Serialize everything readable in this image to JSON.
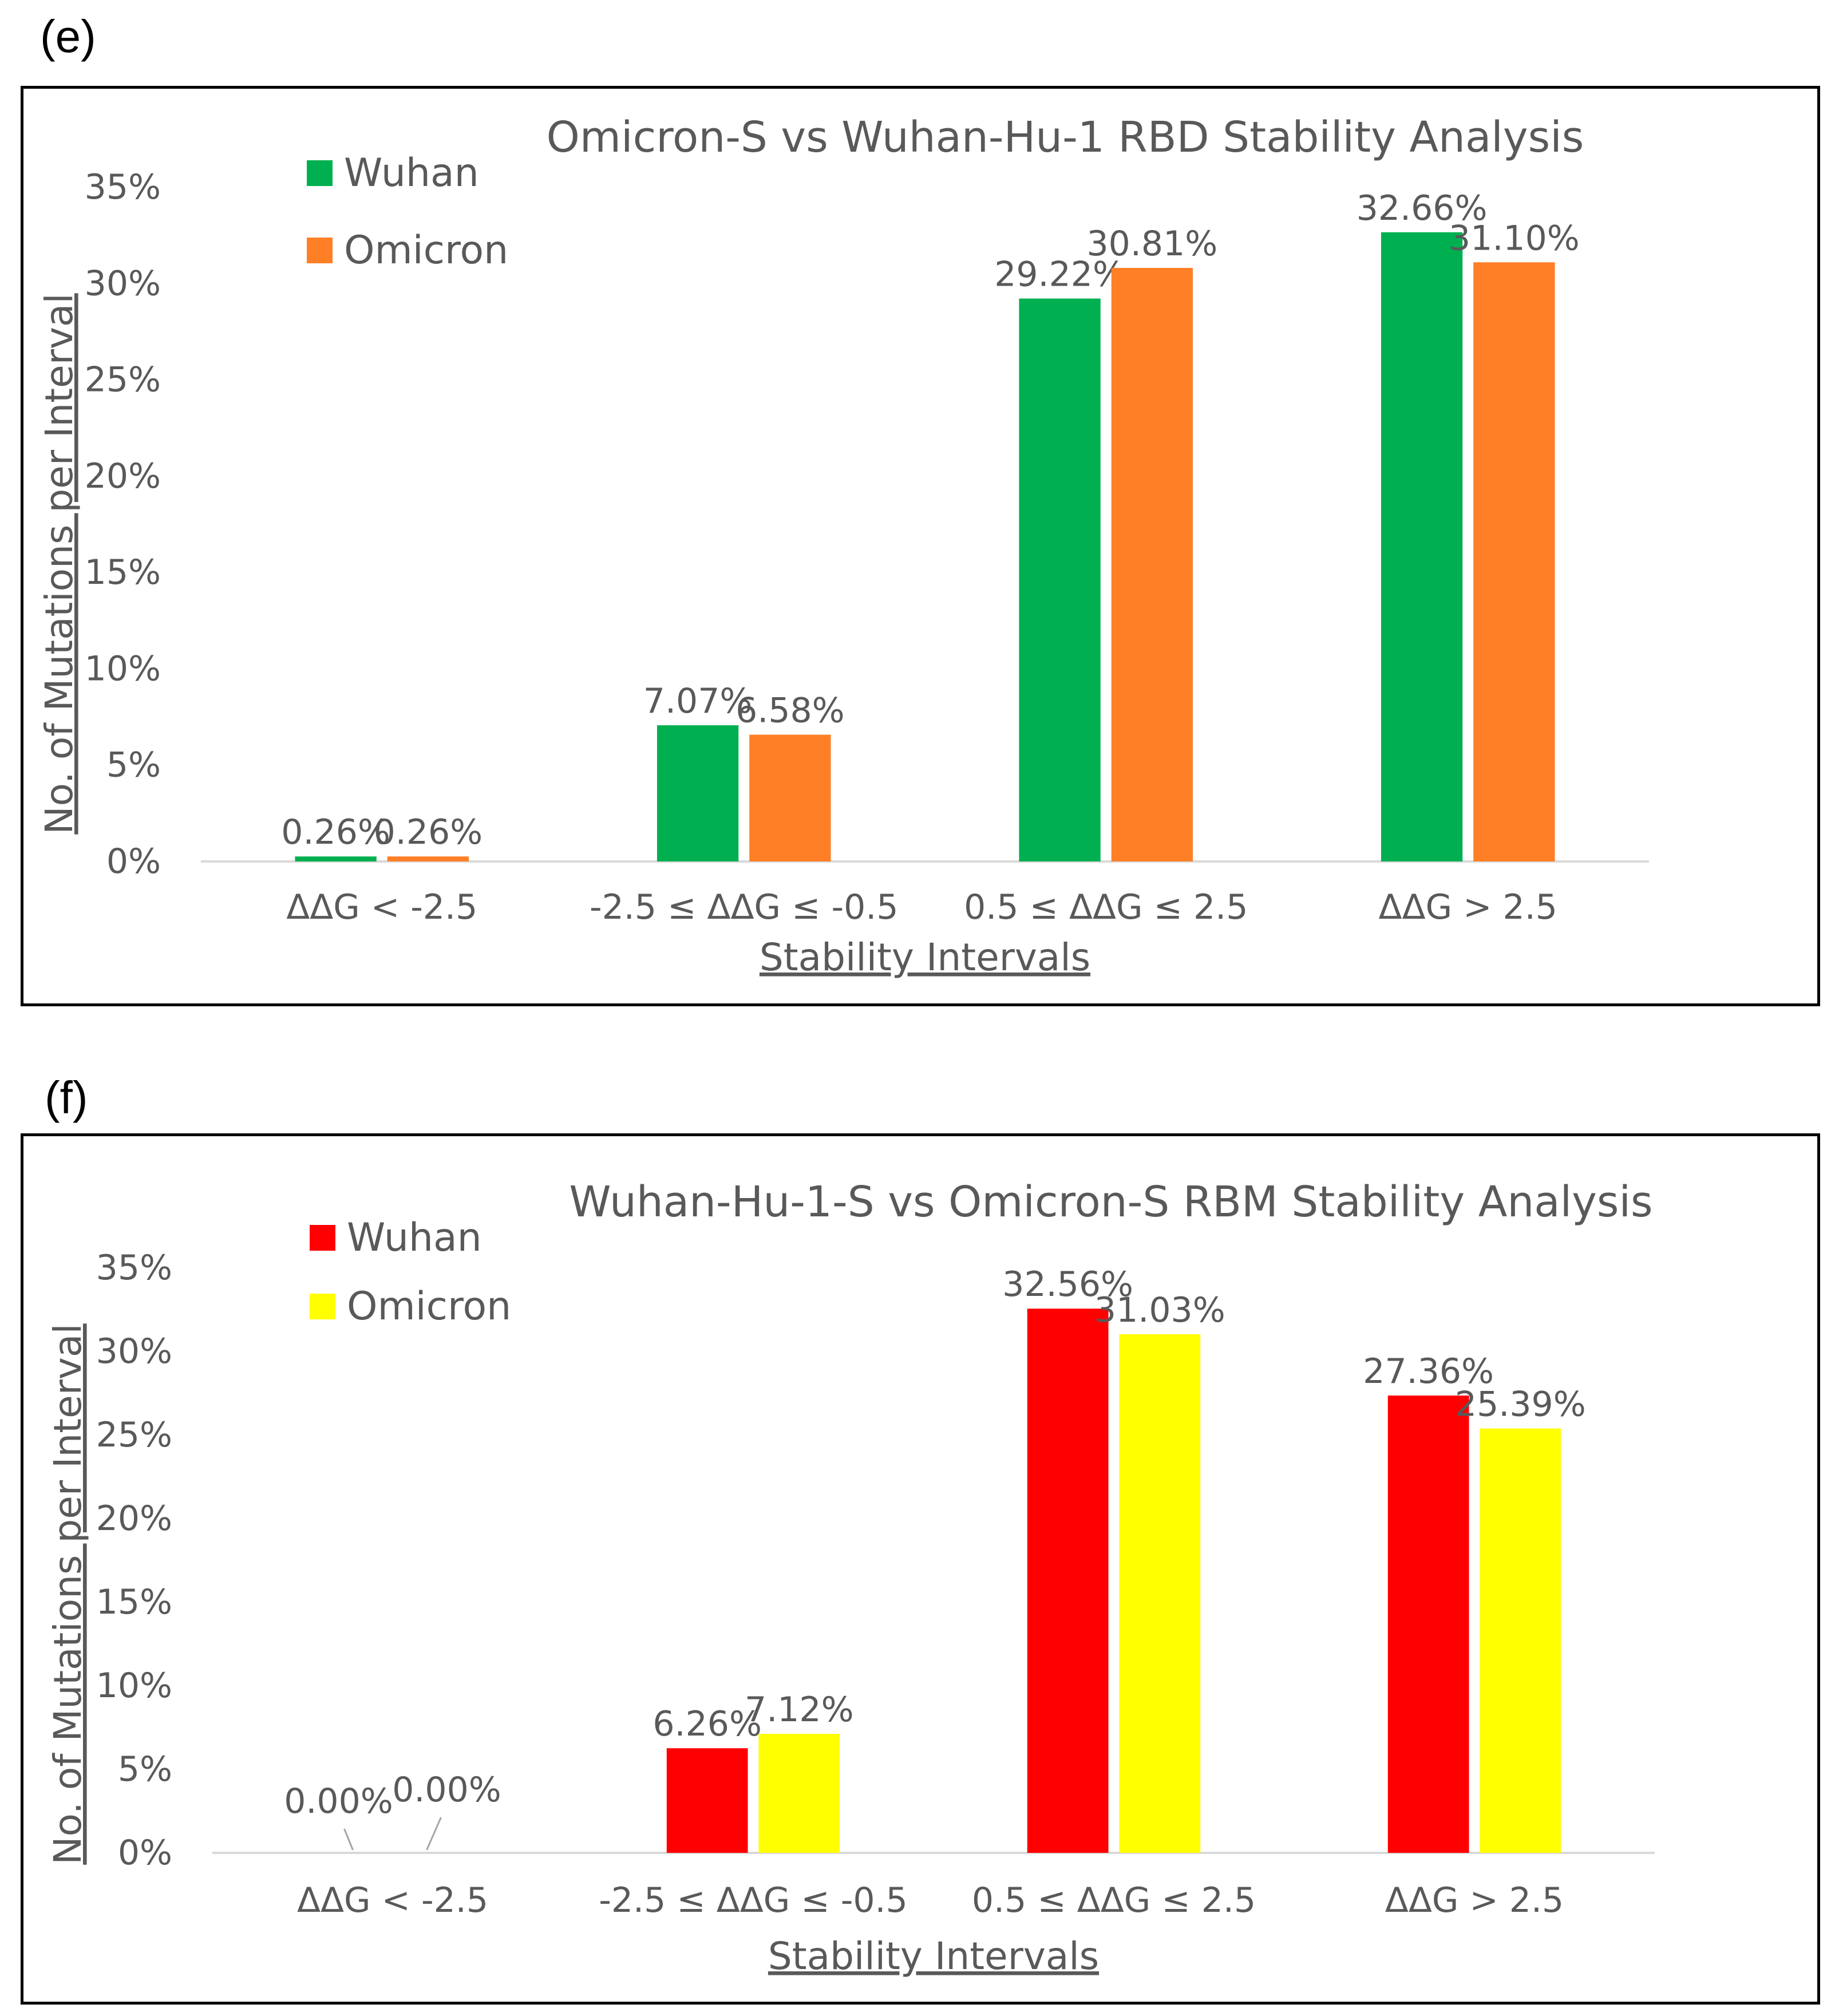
{
  "panels": [
    {
      "label": "(e)"
    },
    {
      "label": "(f)"
    }
  ],
  "chart_data": [
    {
      "type": "bar",
      "title": "Omicron-S vs Wuhan-Hu-1 RBD Stability Analysis",
      "xlabel": "Stability Intervals",
      "ylabel": "No. of Mutations per Interval",
      "categories": [
        "ΔΔG < -2.5",
        "-2.5 ≤ ΔΔG ≤  -0.5",
        "0.5 ≤ ΔΔG ≤ 2.5",
        "ΔΔG > 2.5"
      ],
      "yticks": [
        "0%",
        "5%",
        "10%",
        "15%",
        "20%",
        "25%",
        "30%",
        "35%"
      ],
      "ylim": [
        0,
        35
      ],
      "grid": false,
      "legend_position": "top-left",
      "series": [
        {
          "name": "Wuhan",
          "color": "#00b050",
          "values": [
            0.26,
            7.07,
            29.22,
            32.66
          ],
          "labels": [
            "0.26%",
            "7.07%",
            "29.22%",
            "32.66%"
          ]
        },
        {
          "name": "Omicron",
          "color": "#ff7f27",
          "values": [
            0.26,
            6.58,
            30.81,
            31.1
          ],
          "labels": [
            "0.26%",
            "6.58%",
            "30.81%",
            "31.10%"
          ]
        }
      ]
    },
    {
      "type": "bar",
      "title": "Wuhan-Hu-1-S vs Omicron-S RBM Stability Analysis",
      "xlabel": "Stability Intervals",
      "ylabel": "No. of Mutations per Interval",
      "categories": [
        "ΔΔG < -2.5",
        "-2.5 ≤ ΔΔG ≤  -0.5",
        "0.5 ≤ ΔΔG ≤ 2.5",
        "ΔΔG > 2.5"
      ],
      "yticks": [
        "0%",
        "5%",
        "10%",
        "15%",
        "20%",
        "25%",
        "30%",
        "35%"
      ],
      "ylim": [
        0,
        35
      ],
      "grid": false,
      "legend_position": "top-left",
      "series": [
        {
          "name": "Wuhan",
          "color": "#ff0000",
          "values": [
            0.0,
            6.26,
            32.56,
            27.36
          ],
          "labels": [
            "0.00%",
            "6.26%",
            "32.56%",
            "27.36%"
          ]
        },
        {
          "name": "Omicron",
          "color": "#ffff00",
          "values": [
            0.0,
            7.12,
            31.03,
            25.39
          ],
          "labels": [
            "0.00%",
            "7.12%",
            "31.03%",
            "25.39%"
          ]
        }
      ]
    }
  ]
}
